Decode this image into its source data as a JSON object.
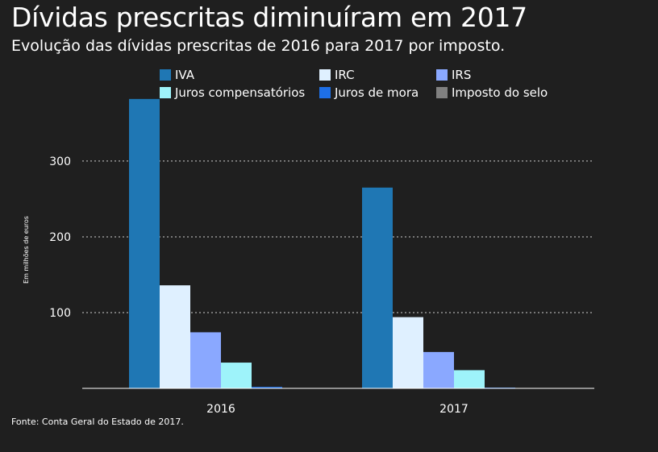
{
  "header": {
    "title": "Dívidas prescritas diminuíram em 2017",
    "subtitle": "Evolução das dívidas prescritas de 2016 para 2017 por imposto."
  },
  "source": "Fonte: Conta Geral do Estado de 2017.",
  "colors": {
    "background": "#1f1f1f",
    "grid": "#cfcfcf",
    "axis": "#ffffff"
  },
  "chart_data": {
    "type": "bar",
    "title": "Dívidas prescritas diminuíram em 2017",
    "subtitle": "Evolução das dívidas prescritas de 2016 para 2017 por imposto.",
    "xlabel": "",
    "ylabel": "Em milhões de euros",
    "ylim": [
      0,
      385
    ],
    "yticks": [
      100,
      200,
      300
    ],
    "grid": true,
    "legend_position": "top",
    "categories": [
      "2016",
      "2017"
    ],
    "series": [
      {
        "name": "IVA",
        "color": "#1f77b4",
        "values": [
          382,
          265
        ]
      },
      {
        "name": "IRC",
        "color": "#dff0ff",
        "values": [
          136,
          94
        ]
      },
      {
        "name": "IRS",
        "color": "#8aa8ff",
        "values": [
          74,
          48
        ]
      },
      {
        "name": "Juros compensatórios",
        "color": "#9ef3fa",
        "values": [
          34,
          24
        ]
      },
      {
        "name": "Juros de mora",
        "color": "#1e6fe6",
        "values": [
          2,
          1
        ]
      },
      {
        "name": "Imposto do selo",
        "color": "#808080",
        "values": [
          0,
          0
        ]
      }
    ]
  }
}
